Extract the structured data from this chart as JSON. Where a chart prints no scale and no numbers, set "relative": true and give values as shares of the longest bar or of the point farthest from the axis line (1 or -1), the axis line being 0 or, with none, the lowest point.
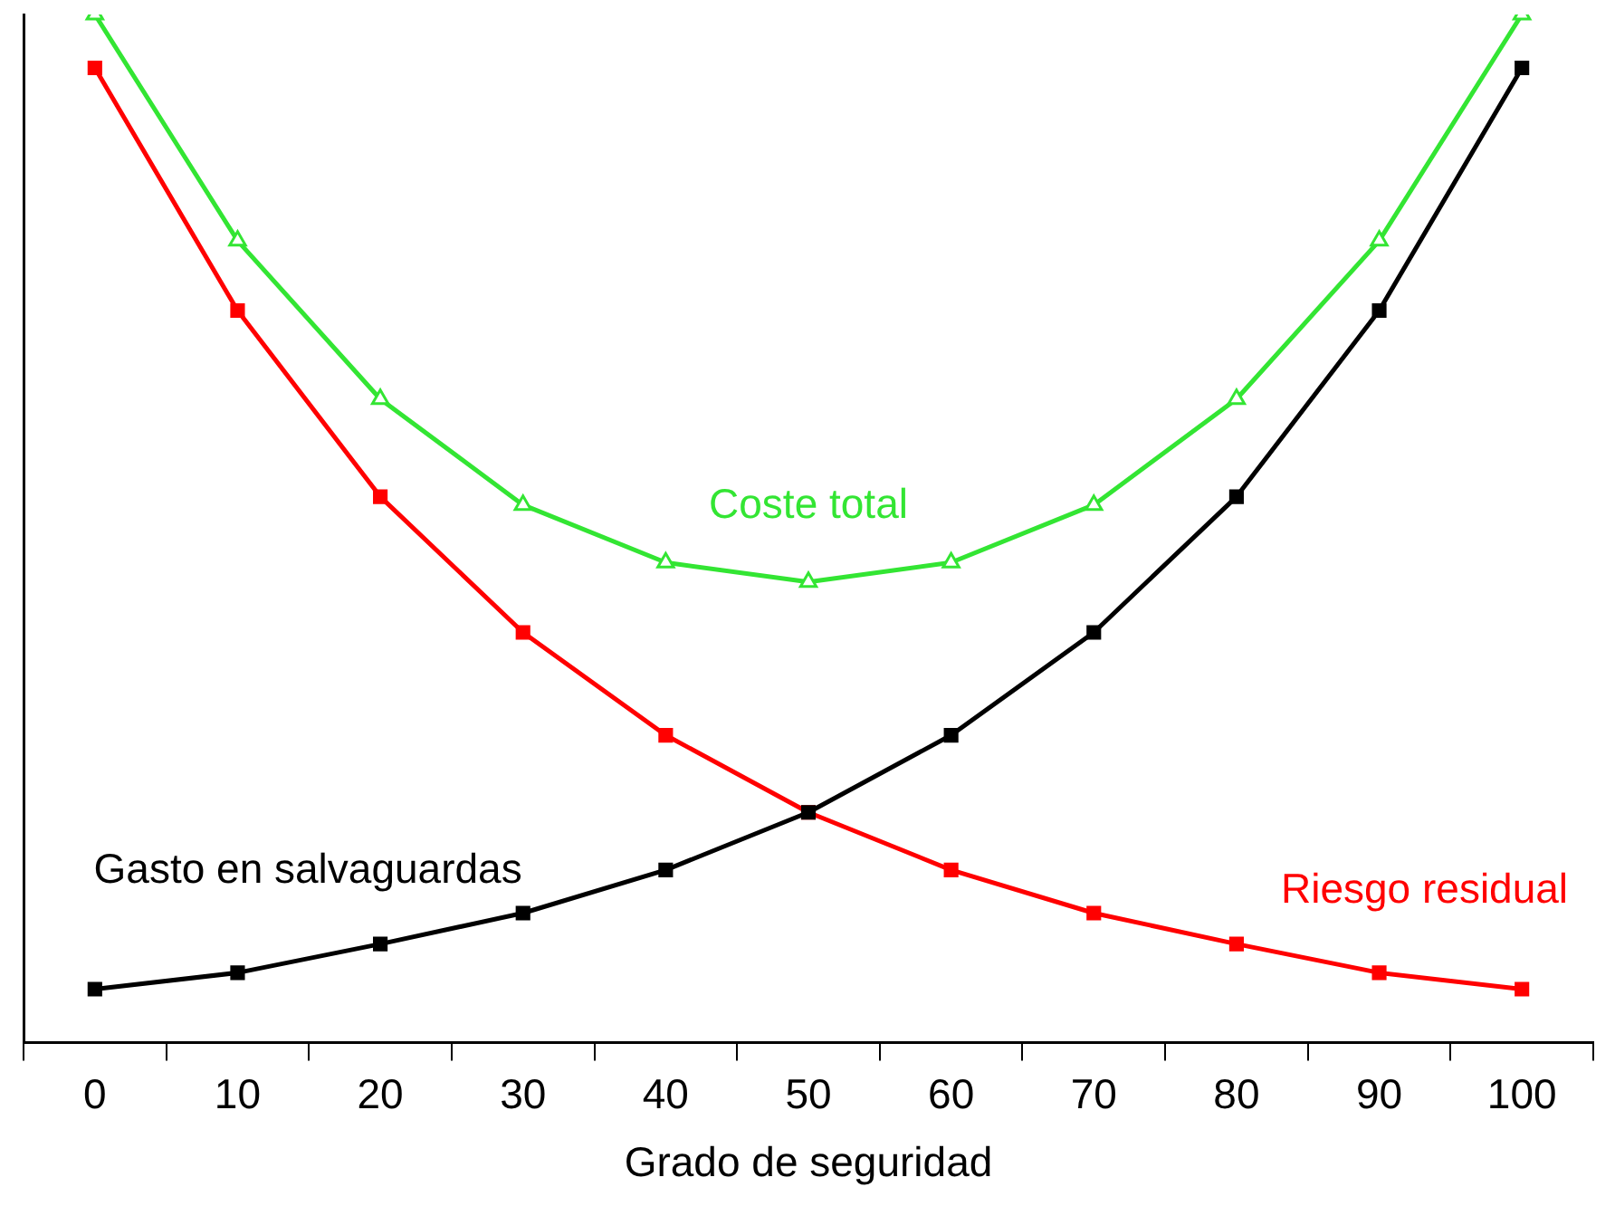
{
  "chart_data": {
    "type": "line",
    "xlabel": "Grado de seguridad",
    "relative": true,
    "grid": false,
    "legend": false,
    "line_style": "solid",
    "categories": [
      "0",
      "10",
      "20",
      "30",
      "40",
      "50",
      "60",
      "70",
      "80",
      "90",
      "100"
    ],
    "series": [
      {
        "name": "Coste total",
        "color": "#33e533",
        "marker": "triangle",
        "values": [
          1,
          0.78,
          0.626,
          0.523,
          0.467,
          0.448,
          0.467,
          0.523,
          0.626,
          0.78,
          1
        ]
      },
      {
        "name": "Riesgo residual",
        "color": "#ff0000",
        "marker": "square",
        "values": [
          0.948,
          0.712,
          0.531,
          0.399,
          0.299,
          0.224,
          0.168,
          0.126,
          0.096,
          0.068,
          0.052
        ]
      },
      {
        "name": "Gasto en salvaguardas",
        "color": "#000000",
        "marker": "square",
        "values": [
          0.052,
          0.068,
          0.096,
          0.126,
          0.168,
          0.224,
          0.299,
          0.399,
          0.531,
          0.712,
          0.948
        ]
      }
    ]
  }
}
